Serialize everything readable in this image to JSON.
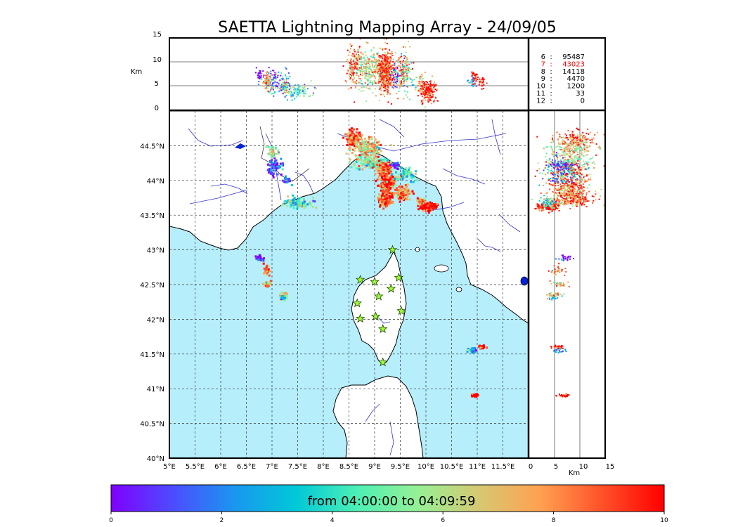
{
  "title": "SAETTA Lightning Mapping Array - 24/09/05",
  "altitude_label": "Km",
  "side_axis_label": "Km",
  "altitude_ticks": [
    "0",
    "5",
    "10",
    "15"
  ],
  "side_ticks": [
    "0",
    "5",
    "10",
    "15"
  ],
  "lon_ticks": [
    "5°E",
    "5.5°E",
    "6°E",
    "6.5°E",
    "7°E",
    "7.5°E",
    "8°E",
    "8.5°E",
    "9°E",
    "9.5°E",
    "10°E",
    "10.5°E",
    "11°E",
    "11.5°E"
  ],
  "lat_ticks": [
    "40°N",
    "40.5°N",
    "41°N",
    "41.5°N",
    "42°N",
    "42.5°N",
    "43°N",
    "43.5°N",
    "44°N",
    "44.5°N"
  ],
  "stats": [
    {
      "n": "6",
      "sep": ":",
      "count": "95487",
      "color": "#000000"
    },
    {
      "n": "7",
      "sep": ":",
      "count": "43023",
      "color": "#ff0000"
    },
    {
      "n": "8",
      "sep": ":",
      "count": "14118",
      "color": "#000000"
    },
    {
      "n": "9",
      "sep": ":",
      "count": "4470",
      "color": "#000000"
    },
    {
      "n": "10",
      "sep": ":",
      "count": "1200",
      "color": "#000000"
    },
    {
      "n": "11",
      "sep": ":",
      "count": "33",
      "color": "#000000"
    },
    {
      "n": "12",
      "sep": ":",
      "count": "0",
      "color": "#000000"
    }
  ],
  "colorbar": {
    "label": "from 04:00:00 to 04:09:59",
    "ticks": [
      "0",
      "2",
      "4",
      "6",
      "8",
      "10"
    ],
    "colors": [
      "#7f00ff",
      "#4c4cff",
      "#1a96f0",
      "#00c8d8",
      "#4cf0b4",
      "#96f096",
      "#d6c872",
      "#ffa050",
      "#ff5028",
      "#ff0000"
    ]
  },
  "map": {
    "sea_color": "#b6eefb",
    "land_color": "#ffffff",
    "river_color": "#3333cc",
    "station_color": "#9aff30",
    "lon_range": [
      5,
      12
    ],
    "lat_range": [
      40,
      45
    ]
  },
  "chart_data": {
    "type": "scatter",
    "title": "SAETTA Lightning Mapping Array - 24/09/05",
    "xlabel": "",
    "ylabel": "",
    "xlim": [
      5,
      12
    ],
    "ylim": [
      40,
      45
    ],
    "altitude_range_km": [
      0,
      15
    ],
    "time_range": [
      "04:00:00",
      "04:09:59"
    ],
    "color_scale": [
      0,
      10
    ],
    "grid": true,
    "stations": [
      {
        "lon": 9.35,
        "lat": 43.0
      },
      {
        "lon": 8.72,
        "lat": 42.57
      },
      {
        "lon": 9.0,
        "lat": 42.54
      },
      {
        "lon": 9.47,
        "lat": 42.6
      },
      {
        "lon": 9.32,
        "lat": 42.44
      },
      {
        "lon": 9.08,
        "lat": 42.33
      },
      {
        "lon": 8.66,
        "lat": 42.23
      },
      {
        "lon": 9.52,
        "lat": 42.12
      },
      {
        "lon": 9.02,
        "lat": 42.04
      },
      {
        "lon": 8.72,
        "lat": 42.01
      },
      {
        "lon": 9.16,
        "lat": 41.86
      },
      {
        "lon": 9.16,
        "lat": 41.38
      }
    ],
    "clusters": [
      {
        "lon": 8.6,
        "lat": 44.6,
        "sx": 0.12,
        "sy": 0.1,
        "n": 130,
        "alt": 9,
        "sa": 3,
        "c": 8
      },
      {
        "lon": 8.85,
        "lat": 44.45,
        "sx": 0.25,
        "sy": 0.12,
        "n": 160,
        "alt": 9,
        "sa": 3,
        "c": 6
      },
      {
        "lon": 8.92,
        "lat": 44.25,
        "sx": 0.25,
        "sy": 0.08,
        "n": 120,
        "alt": 8,
        "sa": 3,
        "c": 5
      },
      {
        "lon": 9.2,
        "lat": 44.12,
        "sx": 0.12,
        "sy": 0.12,
        "n": 180,
        "alt": 8,
        "sa": 3,
        "c": 8
      },
      {
        "lon": 9.25,
        "lat": 43.92,
        "sx": 0.12,
        "sy": 0.1,
        "n": 170,
        "alt": 8,
        "sa": 3,
        "c": 8
      },
      {
        "lon": 9.2,
        "lat": 43.72,
        "sx": 0.1,
        "sy": 0.08,
        "n": 160,
        "alt": 9,
        "sa": 3,
        "c": 8
      },
      {
        "lon": 9.55,
        "lat": 43.82,
        "sx": 0.12,
        "sy": 0.08,
        "n": 120,
        "alt": 8,
        "sa": 3,
        "c": 7
      },
      {
        "lon": 10.05,
        "lat": 43.62,
        "sx": 0.12,
        "sy": 0.05,
        "n": 170,
        "alt": 4,
        "sa": 1.5,
        "c": 9
      },
      {
        "lon": 9.9,
        "lat": 43.7,
        "sx": 0.06,
        "sy": 0.04,
        "n": 40,
        "alt": 5,
        "sa": 2,
        "c": 7
      },
      {
        "lon": 9.6,
        "lat": 44.1,
        "sx": 0.2,
        "sy": 0.08,
        "n": 70,
        "alt": 7,
        "sa": 3,
        "c": 4
      },
      {
        "lon": 9.4,
        "lat": 44.22,
        "sx": 0.06,
        "sy": 0.04,
        "n": 30,
        "alt": 7,
        "sa": 2,
        "c": 1
      },
      {
        "lon": 7.05,
        "lat": 44.2,
        "sx": 0.12,
        "sy": 0.12,
        "n": 70,
        "alt": 6,
        "sa": 2,
        "c": 1
      },
      {
        "lon": 7.3,
        "lat": 44.0,
        "sx": 0.1,
        "sy": 0.05,
        "n": 25,
        "alt": 6,
        "sa": 2,
        "c": 2
      },
      {
        "lon": 7.5,
        "lat": 43.68,
        "sx": 0.22,
        "sy": 0.06,
        "n": 90,
        "alt": 4,
        "sa": 1,
        "c": 4
      },
      {
        "lon": 7.0,
        "lat": 44.4,
        "sx": 0.1,
        "sy": 0.1,
        "n": 25,
        "alt": 6,
        "sa": 2,
        "c": 5
      },
      {
        "lon": 6.75,
        "lat": 42.88,
        "sx": 0.06,
        "sy": 0.03,
        "n": 30,
        "alt": 7,
        "sa": 1,
        "c": 0
      },
      {
        "lon": 6.9,
        "lat": 42.7,
        "sx": 0.05,
        "sy": 0.06,
        "n": 30,
        "alt": 6,
        "sa": 1,
        "c": 7
      },
      {
        "lon": 6.9,
        "lat": 42.5,
        "sx": 0.05,
        "sy": 0.04,
        "n": 30,
        "alt": 6,
        "sa": 1,
        "c": 6
      },
      {
        "lon": 7.25,
        "lat": 42.35,
        "sx": 0.06,
        "sy": 0.04,
        "n": 30,
        "alt": 5,
        "sa": 1,
        "c": 6
      },
      {
        "lon": 7.22,
        "lat": 42.3,
        "sx": 0.04,
        "sy": 0.03,
        "n": 15,
        "alt": 5,
        "sa": 1,
        "c": 3
      },
      {
        "lon": 10.9,
        "lat": 41.55,
        "sx": 0.06,
        "sy": 0.03,
        "n": 25,
        "alt": 6,
        "sa": 1,
        "c": 2
      },
      {
        "lon": 11.1,
        "lat": 41.6,
        "sx": 0.06,
        "sy": 0.02,
        "n": 25,
        "alt": 6,
        "sa": 1,
        "c": 9
      },
      {
        "lon": 10.95,
        "lat": 40.9,
        "sx": 0.06,
        "sy": 0.02,
        "n": 30,
        "alt": 7,
        "sa": 1,
        "c": 9
      }
    ]
  }
}
